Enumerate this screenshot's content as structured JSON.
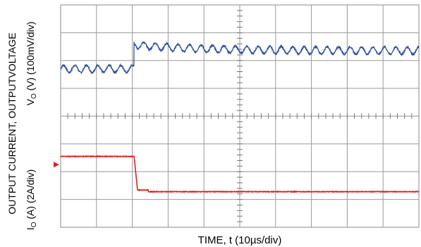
{
  "chart_data": {
    "type": "line",
    "title": "",
    "grid": true,
    "divisions": {
      "x": 10,
      "y": 8
    },
    "xlabel": "TIME, t (10µs/div)",
    "ylabel_upper": "OUTPUT CURRENT, OUTPUTVOLTAGE",
    "ylabel_lower": "Vₒ (V) (100mV/div)   Iₒ (A) (2A/div)",
    "ylabel_line1": "OUTPUT CURRENT, OUTPUTVOLTAGE",
    "ylabel_line2a": "V",
    "ylabel_line2a_sub": "O",
    "ylabel_line2a_rest": " (V) (100mV/div)",
    "ylabel_line3a": "I",
    "ylabel_line3a_sub": "O",
    "ylabel_line3a_rest": " (A) (2A/div)",
    "series": [
      {
        "key": "vout",
        "color": "#2a4fa0",
        "step_div": 2.05,
        "level_before_div": 5.7,
        "level_after_div": 6.35,
        "ripple_period_div": 0.32,
        "ripple_amp_div": 0.13
      },
      {
        "key": "iout",
        "color": "#e02020",
        "step_div": 2.05,
        "level_before_div": 2.55,
        "level_after_div": 1.28
      }
    ],
    "marker": {
      "color": "#e02020",
      "y_div": 2.0
    }
  }
}
